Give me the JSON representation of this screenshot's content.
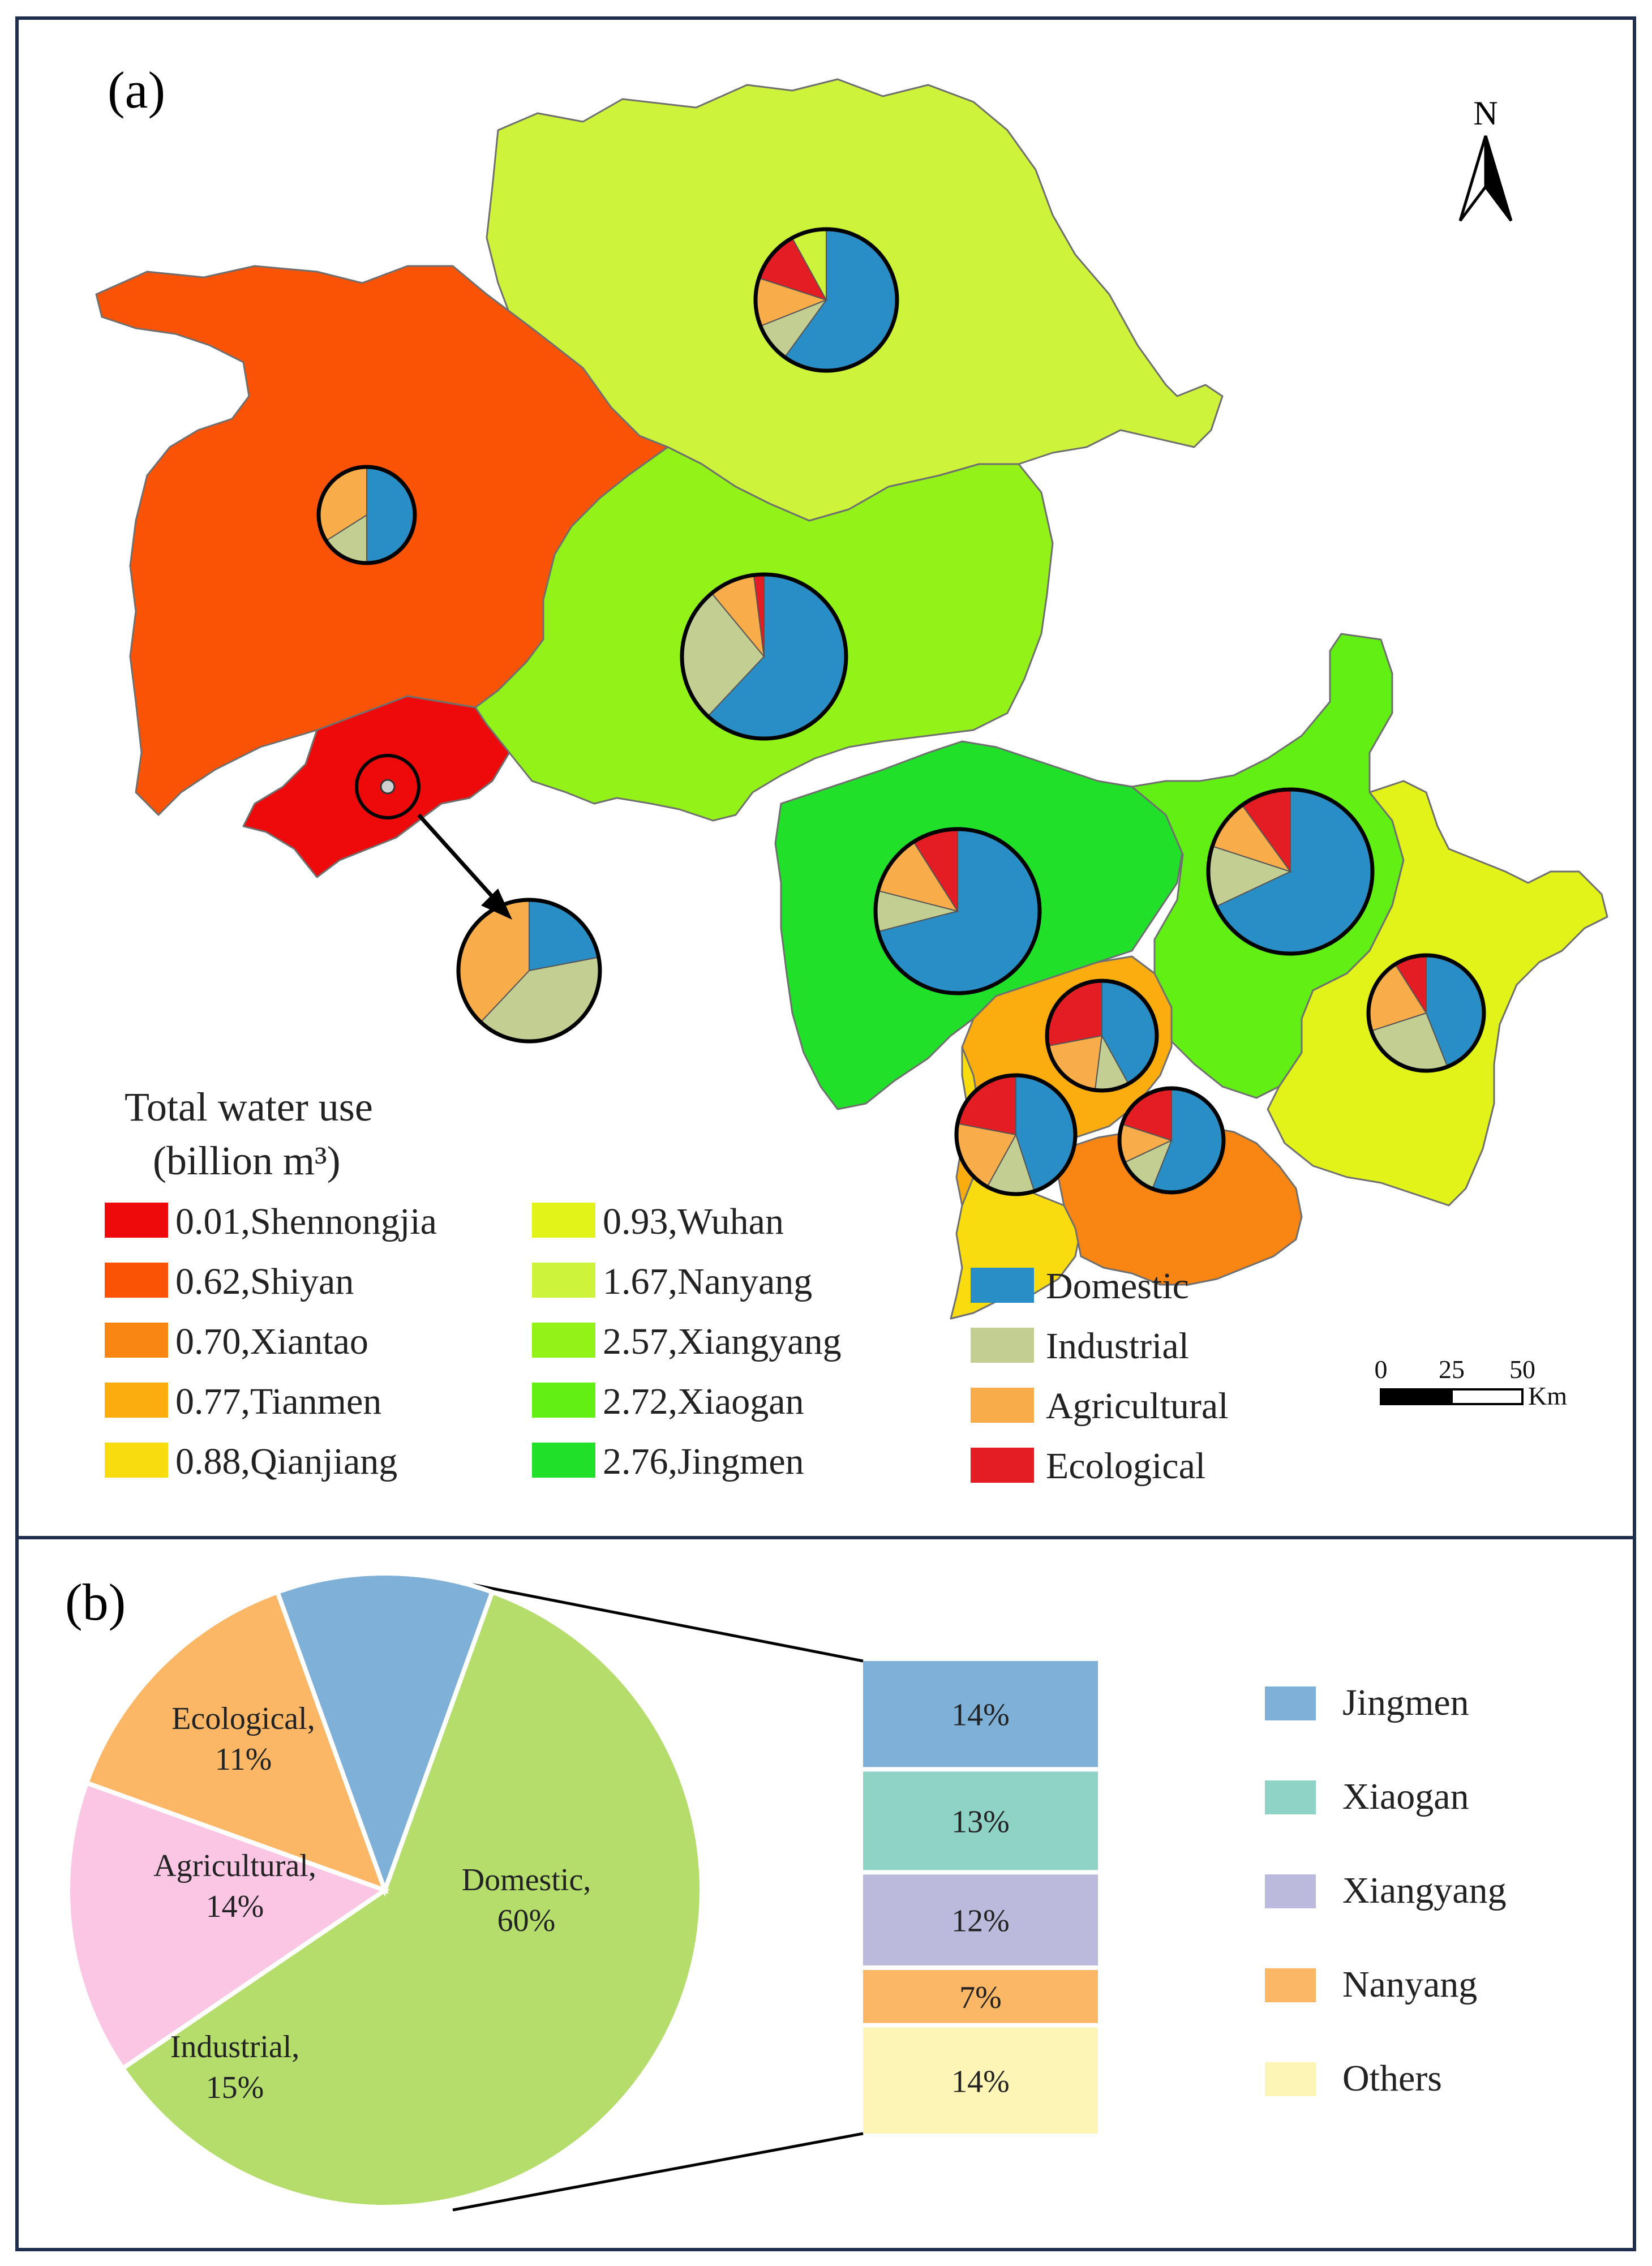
{
  "panel_a": {
    "label": "(a)",
    "north_label": "N",
    "legend_title_line1": "Total water use",
    "legend_title_line2": "(billion m³)",
    "scale": {
      "ticks": [
        "0",
        "25",
        "50"
      ],
      "unit": "Km"
    },
    "sector_colors": {
      "Domestic": "#2a8ec6",
      "Industrial": "#c3ce92",
      "Agricultural": "#f9ad4a",
      "Ecological": "#e41d24"
    },
    "sector_legend": [
      {
        "name": "Domestic",
        "color": "#2a8ec6"
      },
      {
        "name": "Industrial",
        "color": "#c3ce92"
      },
      {
        "name": "Agricultural",
        "color": "#f9ad4a"
      },
      {
        "name": "Ecological",
        "color": "#e41d24"
      }
    ],
    "cities": [
      {
        "label": "0.01,Shennongjia",
        "value": 0.01,
        "name": "Shennongjia",
        "color": "#ee0a0a"
      },
      {
        "label": "0.62,Shiyan",
        "value": 0.62,
        "name": "Shiyan",
        "color": "#fb5306"
      },
      {
        "label": "0.70,Xiantao",
        "value": 0.7,
        "name": "Xiantao",
        "color": "#f98513"
      },
      {
        "label": "0.77,Tianmen",
        "value": 0.77,
        "name": "Tianmen",
        "color": "#fbad10"
      },
      {
        "label": "0.88,Qianjiang",
        "value": 0.88,
        "name": "Qianjiang",
        "color": "#f9dc10"
      },
      {
        "label": "0.93,Wuhan",
        "value": 0.93,
        "name": "Wuhan",
        "color": "#e2f31a"
      },
      {
        "label": "1.67,Nanyang",
        "value": 1.67,
        "name": "Nanyang",
        "color": "#cdf33a"
      },
      {
        "label": "2.57,Xiangyang",
        "value": 2.57,
        "name": "Xiangyang",
        "color": "#93f217"
      },
      {
        "label": "2.72,Xiaogan",
        "value": 2.72,
        "name": "Xiaogan",
        "color": "#61ef14"
      },
      {
        "label": "2.76,Jingmen",
        "value": 2.76,
        "name": "Jingmen",
        "color": "#20e02a"
      }
    ],
    "pie_shares": {
      "Nanyang": [
        0.6,
        0.09,
        0.11,
        0.12
      ],
      "Shiyan": [
        0.5,
        0.16,
        0.34,
        0.0
      ],
      "Xiangyang": [
        0.62,
        0.27,
        0.09,
        0.02
      ],
      "Shennongjia": [
        0.22,
        0.4,
        0.38,
        0.0
      ],
      "Jingmen": [
        0.71,
        0.08,
        0.12,
        0.09
      ],
      "Xiaogan": [
        0.68,
        0.12,
        0.1,
        0.1
      ],
      "Tianmen": [
        0.42,
        0.1,
        0.2,
        0.28
      ],
      "Wuhan": [
        0.44,
        0.26,
        0.21,
        0.09
      ],
      "Qianjiang": [
        0.45,
        0.13,
        0.2,
        0.22
      ],
      "Xiantao": [
        0.56,
        0.12,
        0.12,
        0.2
      ]
    }
  },
  "panel_b": {
    "label": "(b)",
    "chart_data": {
      "type": "pie",
      "slices": [
        {
          "name": "Domestic",
          "label_line1": "Domestic,",
          "label_line2": "60%",
          "value": 60,
          "color": "#b4dd6b"
        },
        {
          "name": "Industrial",
          "label_line1": "Industrial,",
          "label_line2": "15%",
          "value": 15,
          "color": "#fbc6e4"
        },
        {
          "name": "Agricultural",
          "label_line1": "Agricultural,",
          "label_line2": "14%",
          "value": 14,
          "color": "#fbb765"
        },
        {
          "name": "Ecological",
          "label_line1": "Ecological,",
          "label_line2": "11%",
          "value": 11,
          "color": "#7fb0d8"
        }
      ],
      "breakdown_of": "Domestic",
      "breakdown": [
        {
          "name": "Jingmen",
          "label": "14%",
          "value": 14,
          "color": "#7fb0d8"
        },
        {
          "name": "Xiaogan",
          "label": "13%",
          "value": 13,
          "color": "#8fd3c6"
        },
        {
          "name": "Xiangyang",
          "label": "12%",
          "value": 12,
          "color": "#bcbadc"
        },
        {
          "name": "Nanyang",
          "label": "7%",
          "value": 7,
          "color": "#fbb765"
        },
        {
          "name": "Others",
          "label": "14%",
          "value": 14,
          "color": "#fdf5b6"
        }
      ]
    }
  }
}
